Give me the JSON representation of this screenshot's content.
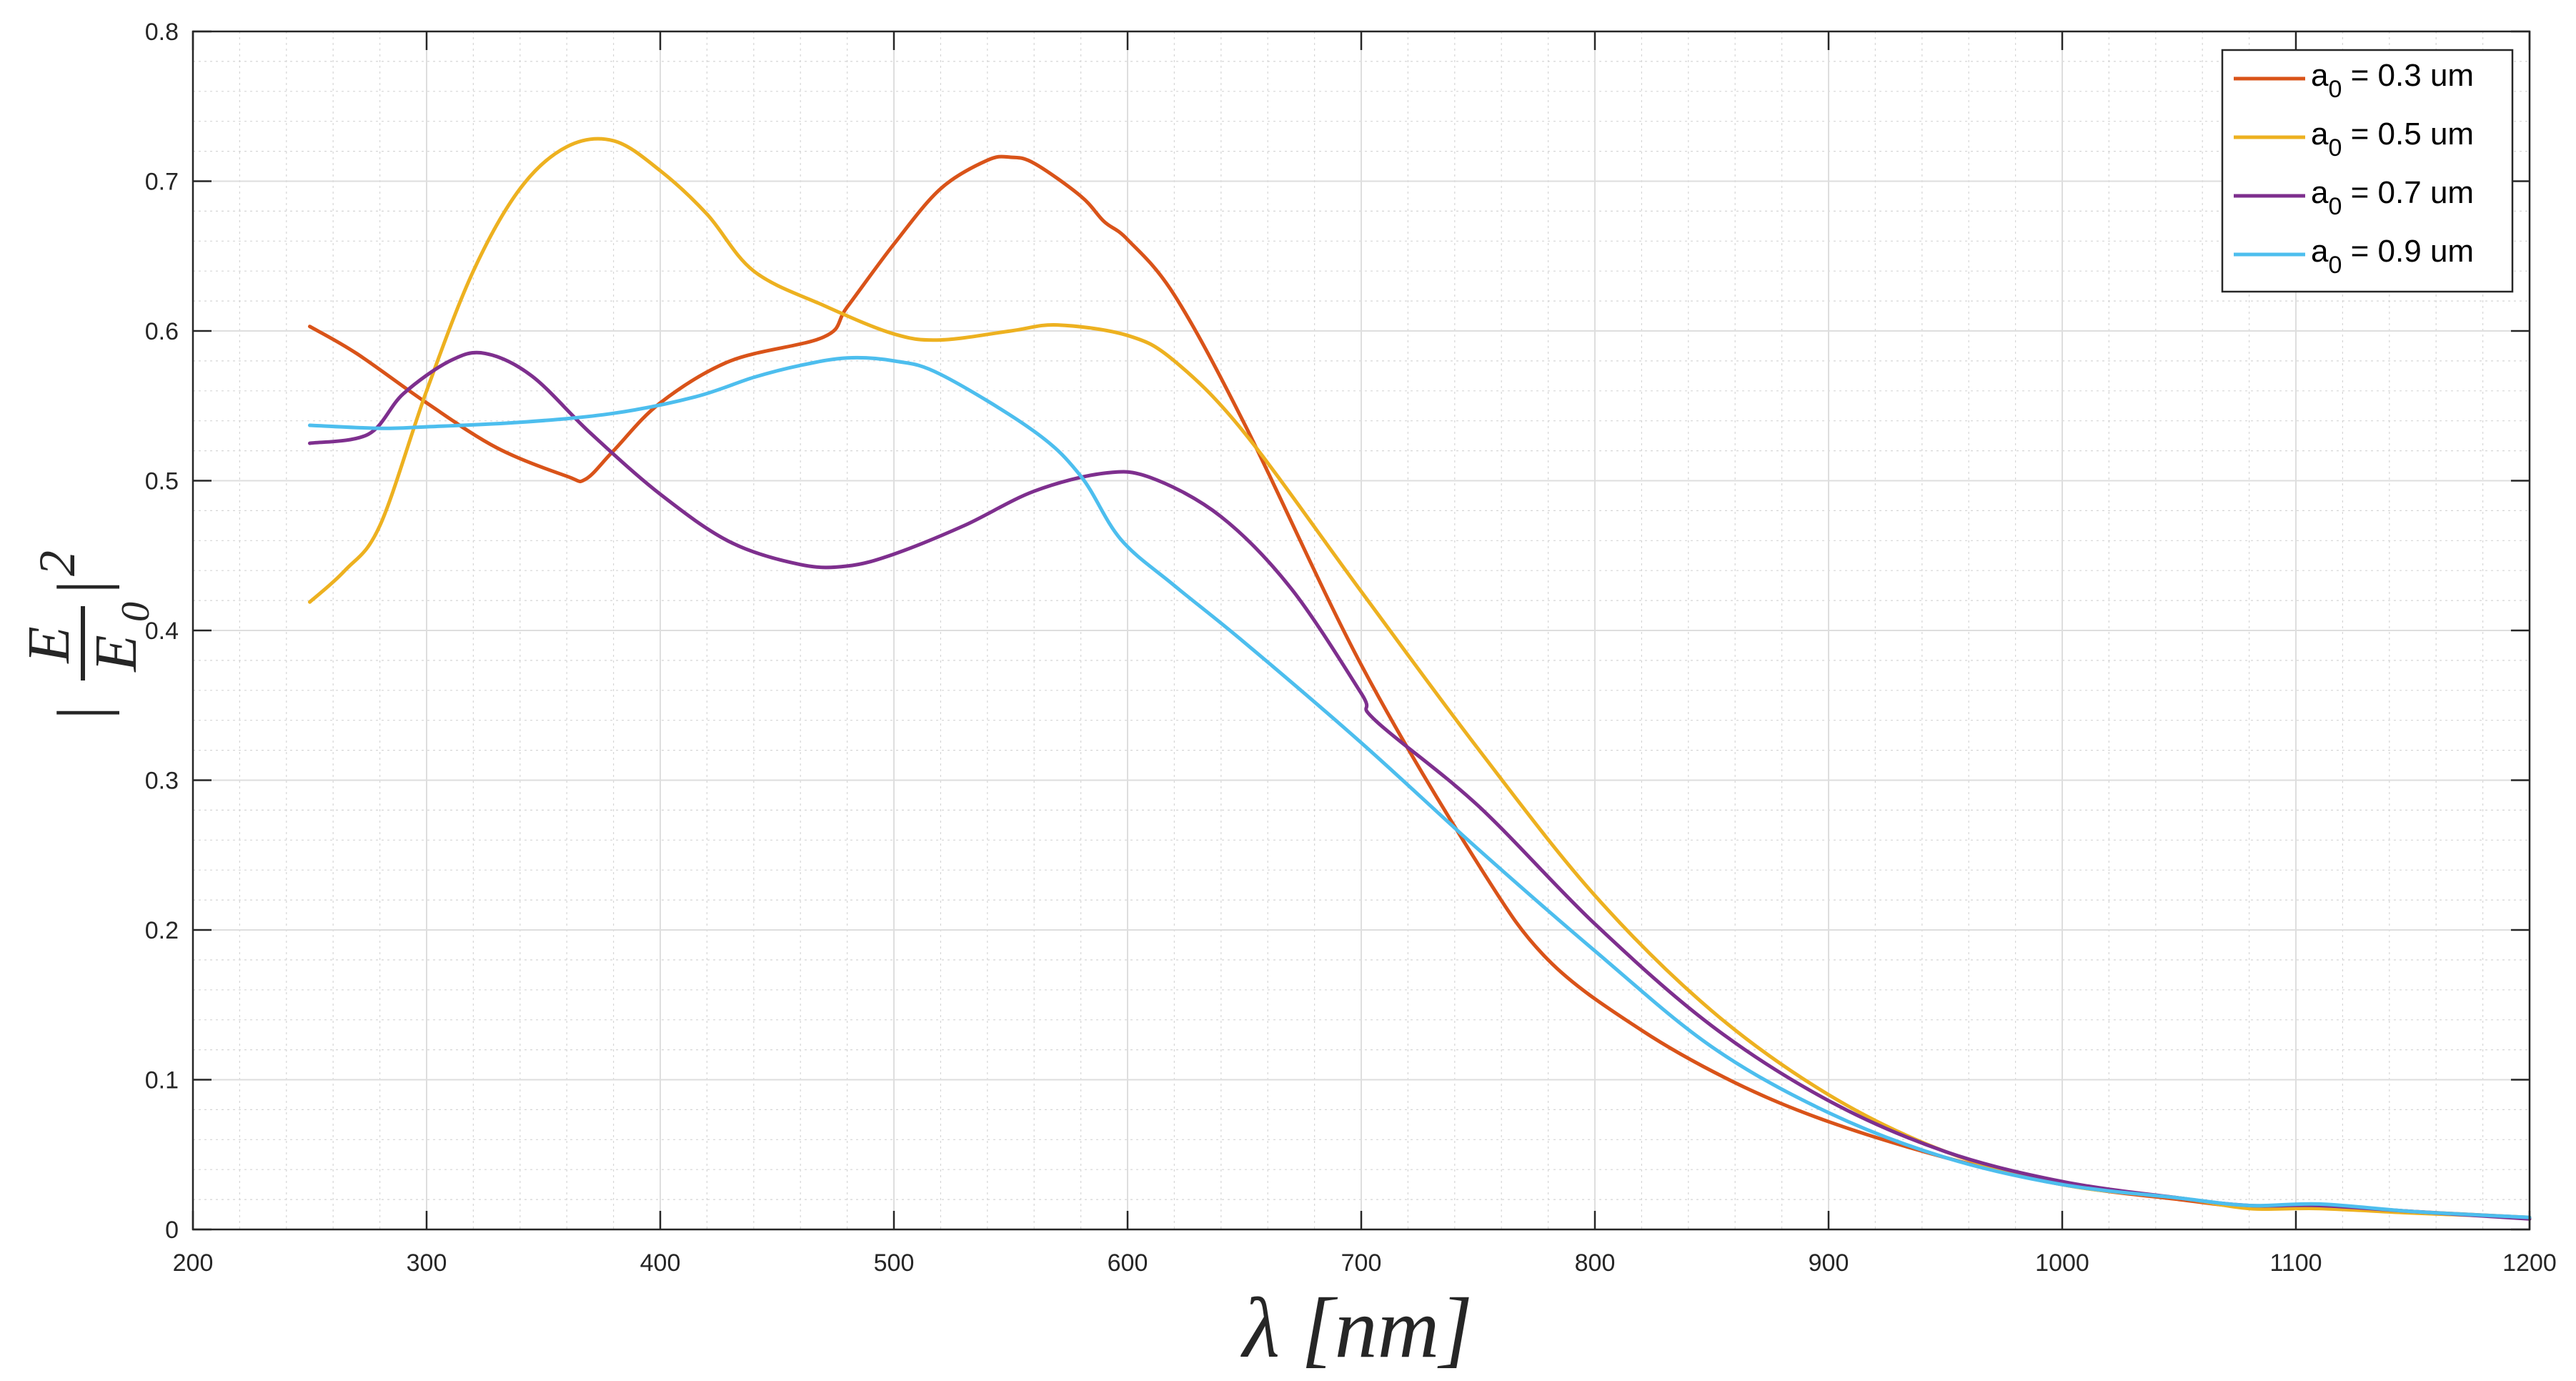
{
  "chart_data": {
    "type": "line",
    "title": "",
    "xlabel": "λ [nm]",
    "ylabel": "|E/E0|^2",
    "xlim": [
      200,
      1200
    ],
    "ylim": [
      0,
      0.8
    ],
    "x_ticks": [
      "200",
      "300",
      "400",
      "500",
      "600",
      "700",
      "800",
      "900",
      "1000",
      "1100",
      "1200"
    ],
    "y_ticks": [
      "0",
      "0.1",
      "0.2",
      "0.3",
      "0.4",
      "0.5",
      "0.6",
      "0.7",
      "0.8"
    ],
    "grid": true,
    "minor_grid": true,
    "legend_position": "top-right",
    "series": [
      {
        "name": "a0 = 0.3 um",
        "legend": {
          "base": "a",
          "sub": "0",
          "rest": " = 0.3 um"
        },
        "color": "#D95319",
        "x": [
          250,
          270,
          300,
          330,
          360,
          368,
          380,
          400,
          430,
          470,
          480,
          500,
          520,
          540,
          550,
          560,
          580,
          590,
          600,
          620,
          650,
          700,
          750,
          780,
          820,
          860,
          900,
          950,
          1000,
          1050,
          1080,
          1110,
          1150,
          1200
        ],
        "y": [
          0.603,
          0.585,
          0.552,
          0.522,
          0.503,
          0.501,
          0.52,
          0.552,
          0.58,
          0.596,
          0.616,
          0.658,
          0.695,
          0.714,
          0.716,
          0.712,
          0.69,
          0.673,
          0.661,
          0.624,
          0.538,
          0.377,
          0.244,
          0.18,
          0.133,
          0.098,
          0.072,
          0.048,
          0.03,
          0.02,
          0.015,
          0.016,
          0.012,
          0.008
        ]
      },
      {
        "name": "a0 = 0.5 um",
        "legend": {
          "base": "a",
          "sub": "0",
          "rest": " = 0.5 um"
        },
        "color": "#EDB120",
        "x": [
          250,
          265,
          280,
          300,
          320,
          340,
          360,
          380,
          400,
          420,
          440,
          470,
          500,
          520,
          550,
          570,
          600,
          620,
          650,
          700,
          750,
          800,
          850,
          900,
          950,
          1000,
          1050,
          1080,
          1110,
          1150,
          1200
        ],
        "y": [
          0.419,
          0.44,
          0.47,
          0.56,
          0.64,
          0.695,
          0.723,
          0.727,
          0.707,
          0.678,
          0.64,
          0.617,
          0.598,
          0.594,
          0.6,
          0.604,
          0.597,
          0.58,
          0.532,
          0.426,
          0.321,
          0.223,
          0.146,
          0.09,
          0.052,
          0.03,
          0.021,
          0.014,
          0.014,
          0.011,
          0.008
        ]
      },
      {
        "name": "a0 = 0.7 um",
        "legend": {
          "base": "a",
          "sub": "0",
          "rest": " = 0.7 um"
        },
        "color": "#7E2F8E",
        "x": [
          250,
          275,
          290,
          310,
          325,
          345,
          370,
          400,
          430,
          460,
          480,
          500,
          530,
          560,
          590,
          610,
          640,
          670,
          700,
          706,
          750,
          800,
          850,
          900,
          950,
          1000,
          1050,
          1080,
          1110,
          1150,
          1200
        ],
        "y": [
          0.525,
          0.531,
          0.558,
          0.58,
          0.585,
          0.57,
          0.532,
          0.491,
          0.459,
          0.444,
          0.443,
          0.451,
          0.47,
          0.493,
          0.505,
          0.502,
          0.476,
          0.428,
          0.358,
          0.34,
          0.283,
          0.204,
          0.136,
          0.086,
          0.052,
          0.032,
          0.021,
          0.016,
          0.016,
          0.012,
          0.007
        ]
      },
      {
        "name": "a0 = 0.9 um",
        "legend": {
          "base": "a",
          "sub": "0",
          "rest": " = 0.9 um"
        },
        "color": "#4DBEEE",
        "x": [
          250,
          280,
          300,
          340,
          380,
          415,
          440,
          460,
          480,
          500,
          520,
          560,
          580,
          597,
          620,
          650,
          700,
          750,
          800,
          850,
          900,
          950,
          1000,
          1050,
          1080,
          1110,
          1150,
          1200
        ],
        "y": [
          0.537,
          0.535,
          0.536,
          0.539,
          0.545,
          0.556,
          0.569,
          0.577,
          0.582,
          0.58,
          0.571,
          0.533,
          0.503,
          0.461,
          0.43,
          0.392,
          0.325,
          0.254,
          0.186,
          0.122,
          0.078,
          0.048,
          0.03,
          0.021,
          0.016,
          0.017,
          0.012,
          0.008
        ]
      }
    ]
  }
}
